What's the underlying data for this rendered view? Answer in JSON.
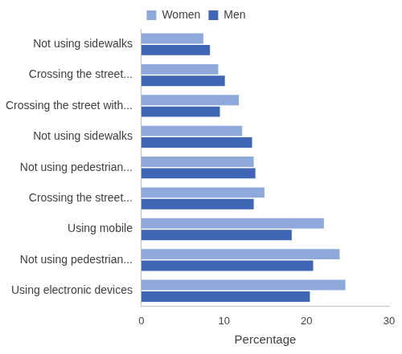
{
  "chart_data": {
    "type": "bar",
    "orientation": "horizontal",
    "categories": [
      "Not using sidewalks",
      "Crossing the street...",
      "Crossing the street with...",
      "Not using sidewalks",
      "Not using pedestrian...",
      "Crossing the street...",
      "Using mobile",
      "Not using pedestrian...",
      "Using electronic devices"
    ],
    "series": [
      {
        "name": "Women",
        "color": "#8eaadb",
        "values": [
          7.5,
          9.3,
          11.8,
          12.2,
          13.6,
          14.9,
          22.1,
          24.0,
          24.7
        ]
      },
      {
        "name": "Men",
        "color": "#3f66b5",
        "values": [
          8.3,
          10.1,
          9.5,
          13.4,
          13.8,
          13.6,
          18.2,
          20.8,
          20.4
        ]
      }
    ],
    "x_label": "Percentage",
    "xlim": [
      0,
      30
    ],
    "xticks": [
      0,
      10,
      20,
      30
    ],
    "grid": false,
    "legend": "top"
  }
}
